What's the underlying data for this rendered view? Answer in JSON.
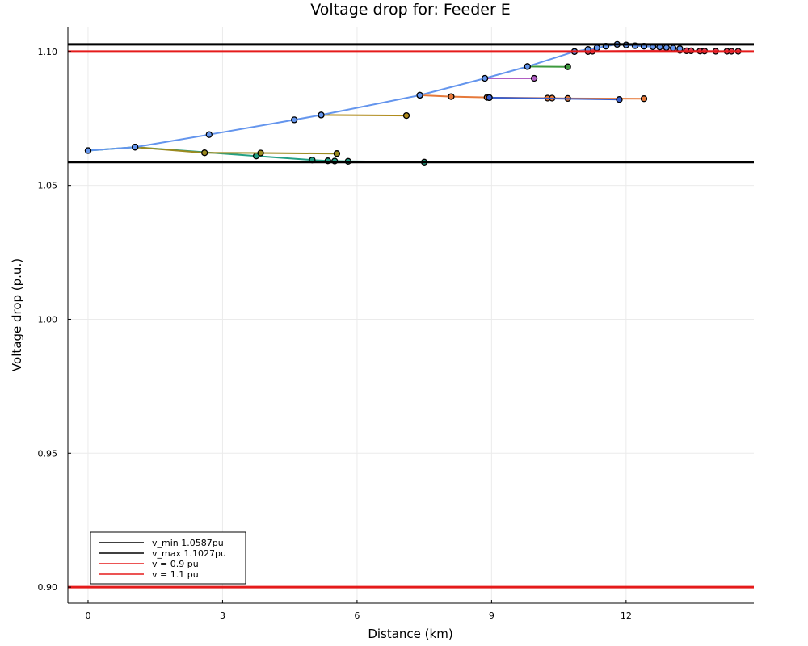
{
  "chart_data": {
    "type": "line",
    "title": "Voltage drop for: Feeder E",
    "xlabel": "Distance (km)",
    "ylabel": "Voltage drop (p.u.)",
    "xlim": [
      -0.45,
      14.85
    ],
    "ylim": [
      0.894,
      1.109
    ],
    "xticks": [
      0,
      3,
      6,
      9,
      12
    ],
    "xtick_labels": [
      "0",
      "3",
      "6",
      "9",
      "12"
    ],
    "yticks": [
      0.9,
      0.95,
      1.0,
      1.05,
      1.1
    ],
    "ytick_labels": [
      "0.90",
      "0.95",
      "1.00",
      "1.05",
      "1.10"
    ],
    "grid": true,
    "legend_position": "bottom-left",
    "hlines": [
      {
        "name": "v_min 1.0587pu",
        "y": 1.0587,
        "color": "#000000"
      },
      {
        "name": "v_max 1.1027pu",
        "y": 1.1027,
        "color": "#000000"
      },
      {
        "name": "v = 0.9 pu",
        "y": 0.9,
        "color": "#e51b1b"
      },
      {
        "name": "v = 1.1 pu",
        "y": 1.1,
        "color": "#e51b1b"
      }
    ],
    "series": [
      {
        "color": "#22a084",
        "points": [
          [
            0,
            1.063
          ],
          [
            1.05,
            1.0643
          ],
          [
            3.75,
            1.061
          ],
          [
            5.0,
            1.0595
          ],
          [
            5.35,
            1.0592
          ],
          [
            5.5,
            1.0591
          ],
          [
            5.8,
            1.059
          ],
          [
            7.5,
            1.0587
          ]
        ]
      },
      {
        "color": "#9b8a1f",
        "points": [
          [
            1.05,
            1.0643
          ],
          [
            2.6,
            1.0622
          ],
          [
            3.85,
            1.0621
          ],
          [
            5.55,
            1.0619
          ]
        ]
      },
      {
        "color": "#b08b1b",
        "points": [
          [
            5.2,
            1.0763
          ],
          [
            7.1,
            1.0761
          ]
        ]
      },
      {
        "color": "#e6793a",
        "points": [
          [
            7.4,
            1.0837
          ],
          [
            8.1,
            1.0832
          ],
          [
            8.9,
            1.0829
          ],
          [
            8.95,
            1.0828
          ],
          [
            10.25,
            1.0826
          ],
          [
            10.35,
            1.0826
          ],
          [
            10.7,
            1.0825
          ],
          [
            12.4,
            1.0824
          ]
        ]
      },
      {
        "color": "#3a5fcd",
        "points": [
          [
            8.95,
            1.0828
          ],
          [
            11.85,
            1.0821
          ]
        ]
      },
      {
        "color": "#b15fc4",
        "points": [
          [
            8.85,
            1.09
          ],
          [
            9.95,
            1.09
          ]
        ]
      },
      {
        "color": "#3e9a3e",
        "points": [
          [
            9.8,
            1.0944
          ],
          [
            10.7,
            1.0943
          ]
        ]
      },
      {
        "color": "#e0405a",
        "points": [
          [
            10.85,
            1.1
          ],
          [
            11.15,
            1.1
          ],
          [
            11.25,
            1.1001
          ],
          [
            13.2,
            1.1004
          ],
          [
            13.35,
            1.1003
          ],
          [
            13.45,
            1.1003
          ],
          [
            13.65,
            1.1002
          ],
          [
            13.75,
            1.1002
          ],
          [
            14.0,
            1.1001
          ],
          [
            14.25,
            1.1001
          ],
          [
            14.35,
            1.1001
          ],
          [
            14.5,
            1.1001
          ]
        ]
      },
      {
        "color": "#6495ed",
        "points": [
          [
            0,
            1.063
          ],
          [
            1.05,
            1.0643
          ],
          [
            2.7,
            1.069
          ],
          [
            4.6,
            1.0745
          ],
          [
            5.2,
            1.0763
          ],
          [
            7.4,
            1.0837
          ],
          [
            8.85,
            1.09
          ],
          [
            9.8,
            1.0944
          ],
          [
            10.85,
            1.1
          ],
          [
            11.15,
            1.1008
          ],
          [
            11.35,
            1.1014
          ],
          [
            11.55,
            1.102
          ],
          [
            11.8,
            1.1027
          ],
          [
            12.0,
            1.1025
          ],
          [
            12.2,
            1.1022
          ],
          [
            12.4,
            1.102
          ],
          [
            12.6,
            1.1018
          ],
          [
            12.75,
            1.1017
          ],
          [
            12.9,
            1.1015
          ],
          [
            13.05,
            1.1013
          ],
          [
            13.2,
            1.1011
          ]
        ]
      }
    ]
  }
}
